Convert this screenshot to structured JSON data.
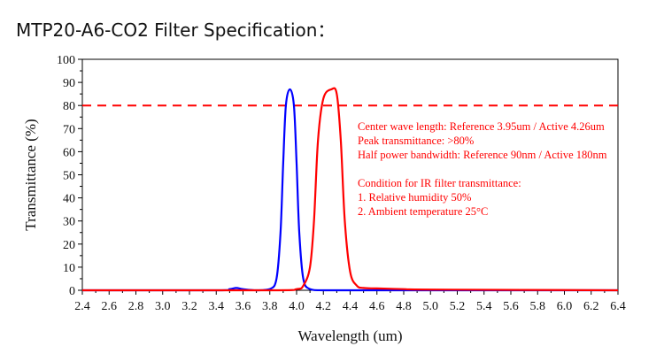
{
  "page": {
    "heading": "MTP20-A6-CO2 Filter Specification："
  },
  "chart_data": {
    "type": "line",
    "title": "",
    "xlabel": "Wavelength (um)",
    "ylabel": "Transmittance (%)",
    "xlim": [
      2.4,
      6.4
    ],
    "ylim": [
      0,
      100
    ],
    "x_ticks": [
      "2.4",
      "2.6",
      "2.8",
      "3.0",
      "3.2",
      "3.4",
      "3.6",
      "3.8",
      "4.0",
      "4.2",
      "4.4",
      "4.6",
      "4.8",
      "5.0",
      "5.2",
      "5.4",
      "5.6",
      "5.8",
      "6.0",
      "6.2",
      "6.4"
    ],
    "y_ticks": [
      "0",
      "10",
      "20",
      "30",
      "40",
      "50",
      "60",
      "70",
      "80",
      "90",
      "100"
    ],
    "grid": false,
    "reference_line": {
      "y": 80,
      "style": "dashed",
      "color": "#ff0000"
    },
    "series": [
      {
        "color": "#0000ff",
        "x": [
          2.4,
          3.4,
          3.5,
          3.55,
          3.6,
          3.7,
          3.8,
          3.85,
          3.88,
          3.9,
          3.92,
          3.95,
          3.98,
          4.0,
          4.02,
          4.05,
          4.1,
          4.2,
          4.5,
          5.0,
          6.4
        ],
        "y": [
          0,
          0,
          0.5,
          1.0,
          0.5,
          0,
          0.5,
          5,
          25,
          55,
          80,
          87,
          80,
          55,
          25,
          5,
          0.5,
          0,
          0,
          0,
          0
        ]
      },
      {
        "color": "#ff0000",
        "x": [
          2.4,
          3.8,
          4.0,
          4.05,
          4.1,
          4.13,
          4.16,
          4.2,
          4.26,
          4.3,
          4.33,
          4.36,
          4.4,
          4.45,
          4.5,
          4.6,
          4.8,
          5.0,
          6.4
        ],
        "y": [
          0,
          0,
          0.5,
          2,
          10,
          30,
          65,
          83,
          87,
          85,
          65,
          30,
          8,
          2,
          1,
          0.8,
          0.5,
          0.3,
          0
        ]
      }
    ],
    "annotations": [
      "Center wave length: Reference 3.95um / Active 4.26um",
      "Peak transmittance: >80%",
      "Half power bandwidth: Reference 90nm / Active 180nm",
      "",
      "Condition for IR filter transmittance:",
      "1. Relative humidity 50%",
      "2. Ambient temperature 25°C"
    ],
    "annotation_color": "#ff0000"
  }
}
